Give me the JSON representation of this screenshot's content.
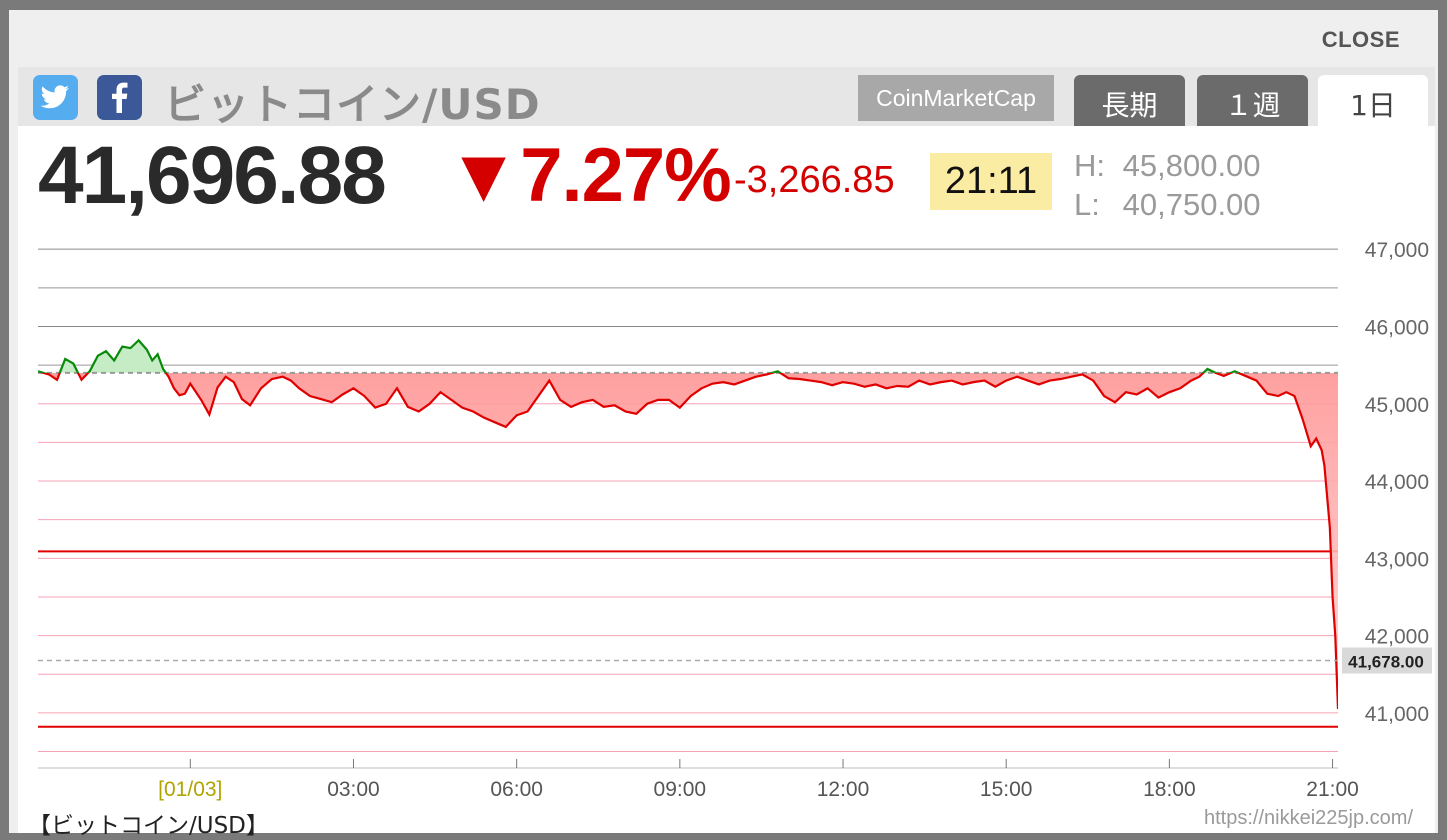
{
  "modal": {
    "close_label": "CLOSE"
  },
  "header": {
    "title": "ビットコイン/USD",
    "source_button": "CoinMarketCap",
    "tabs": [
      {
        "label": "長期",
        "active": false
      },
      {
        "label": "１週",
        "active": false
      },
      {
        "label": "1日",
        "active": true
      }
    ],
    "share": [
      {
        "icon": "twitter-icon"
      },
      {
        "icon": "facebook-icon"
      }
    ]
  },
  "quote": {
    "price": "41,696.88",
    "change_pct": "▼7.27%",
    "change_abs": "-3,266.85",
    "time": "21:11",
    "high_label": "H:",
    "high": "45,800.00",
    "low_label": "L:",
    "low": "40,750.00"
  },
  "footer": {
    "caption": "【ビットコイン/USD】",
    "credit": "https://nikkei225jp.com/"
  },
  "colors": {
    "up": "#0a8a0a",
    "down": "#e00000",
    "down_fill": "#ffaaaa",
    "up_fill": "#c6ecc6",
    "accent_bg": "#fbeca4"
  },
  "chart_data": {
    "type": "area",
    "baseline": 45400,
    "current_label": "41,678.00",
    "current_value": 41678,
    "ylim": [
      40300,
      47300
    ],
    "y_ticks": [
      {
        "v": 41000,
        "label": "41,000"
      },
      {
        "v": 42000,
        "label": "42,000"
      },
      {
        "v": 43000,
        "label": "43,000"
      },
      {
        "v": 44000,
        "label": "44,000"
      },
      {
        "v": 45000,
        "label": "45,000"
      },
      {
        "v": 46000,
        "label": "46,000"
      },
      {
        "v": 47000,
        "label": "47,000"
      }
    ],
    "x_ticks": [
      {
        "h": 0,
        "label": "[01/03]",
        "date": true
      },
      {
        "h": 3,
        "label": "03:00"
      },
      {
        "h": 6,
        "label": "06:00"
      },
      {
        "h": 9,
        "label": "09:00"
      },
      {
        "h": 12,
        "label": "12:00"
      },
      {
        "h": 15,
        "label": "15:00"
      },
      {
        "h": 18,
        "label": "18:00"
      },
      {
        "h": 21,
        "label": "21:00"
      }
    ],
    "xlim": [
      -2.8,
      21.1
    ],
    "levels": [
      {
        "v": 43090
      },
      {
        "v": 40820
      }
    ],
    "series": [
      {
        "x": [
          -2.8,
          -2.6,
          -2.45,
          -2.3,
          -2.15,
          -2.0,
          -1.85,
          -1.7,
          -1.55,
          -1.4,
          -1.25,
          -1.1,
          -0.95,
          -0.8,
          -0.7,
          -0.6,
          -0.5,
          -0.4,
          -0.3,
          -0.2,
          -0.1,
          0.0,
          0.2,
          0.35,
          0.5,
          0.65,
          0.8,
          0.95,
          1.1,
          1.3,
          1.5,
          1.7,
          1.85,
          2.0,
          2.2,
          2.4,
          2.6,
          2.8,
          3.0,
          3.2,
          3.4,
          3.6,
          3.8,
          4.0,
          4.2,
          4.4,
          4.6,
          4.8,
          5.0,
          5.2,
          5.4,
          5.6,
          5.8,
          6.0,
          6.2,
          6.4,
          6.6,
          6.8,
          7.0,
          7.2,
          7.4,
          7.6,
          7.8,
          8.0,
          8.2,
          8.4,
          8.6,
          8.8,
          9.0,
          9.2,
          9.4,
          9.6,
          9.8,
          10.0,
          10.2,
          10.4,
          10.6,
          10.8,
          11.0,
          11.2,
          11.4,
          11.6,
          11.8,
          12.0,
          12.2,
          12.4,
          12.6,
          12.8,
          13.0,
          13.2,
          13.4,
          13.6,
          13.8,
          14.0,
          14.2,
          14.4,
          14.6,
          14.8,
          15.0,
          15.2,
          15.4,
          15.6,
          15.8,
          16.0,
          16.2,
          16.4,
          16.6,
          16.8,
          17.0,
          17.2,
          17.4,
          17.6,
          17.8,
          18.0,
          18.2,
          18.4,
          18.55,
          18.7,
          18.85,
          19.0,
          19.2,
          19.4,
          19.6,
          19.8,
          20.0,
          20.15,
          20.3,
          20.45,
          20.6,
          20.7,
          20.8,
          20.85,
          20.9,
          20.95,
          21.0,
          21.05,
          21.1
        ],
        "y": [
          45420,
          45380,
          45310,
          45580,
          45520,
          45310,
          45420,
          45620,
          45680,
          45560,
          45740,
          45720,
          45820,
          45700,
          45560,
          45640,
          45450,
          45350,
          45200,
          45110,
          45130,
          45260,
          45050,
          44860,
          45210,
          45350,
          45280,
          45060,
          44980,
          45200,
          45320,
          45350,
          45300,
          45200,
          45100,
          45060,
          45020,
          45120,
          45200,
          45100,
          44950,
          45000,
          45200,
          44960,
          44900,
          45000,
          45150,
          45050,
          44950,
          44900,
          44820,
          44760,
          44700,
          44850,
          44900,
          45100,
          45300,
          45050,
          44960,
          45020,
          45050,
          44960,
          44980,
          44900,
          44870,
          45000,
          45050,
          45050,
          44950,
          45100,
          45200,
          45260,
          45280,
          45250,
          45300,
          45350,
          45380,
          45420,
          45330,
          45320,
          45300,
          45280,
          45240,
          45280,
          45260,
          45220,
          45250,
          45200,
          45230,
          45220,
          45300,
          45250,
          45280,
          45300,
          45250,
          45280,
          45300,
          45220,
          45300,
          45350,
          45300,
          45250,
          45300,
          45320,
          45350,
          45380,
          45300,
          45100,
          45020,
          45150,
          45120,
          45200,
          45080,
          45150,
          45200,
          45300,
          45350,
          45450,
          45400,
          45360,
          45420,
          45360,
          45300,
          45130,
          45100,
          45150,
          45100,
          44800,
          44450,
          44550,
          44400,
          44200,
          43800,
          43400,
          42500,
          42000,
          41050
        ]
      }
    ]
  }
}
